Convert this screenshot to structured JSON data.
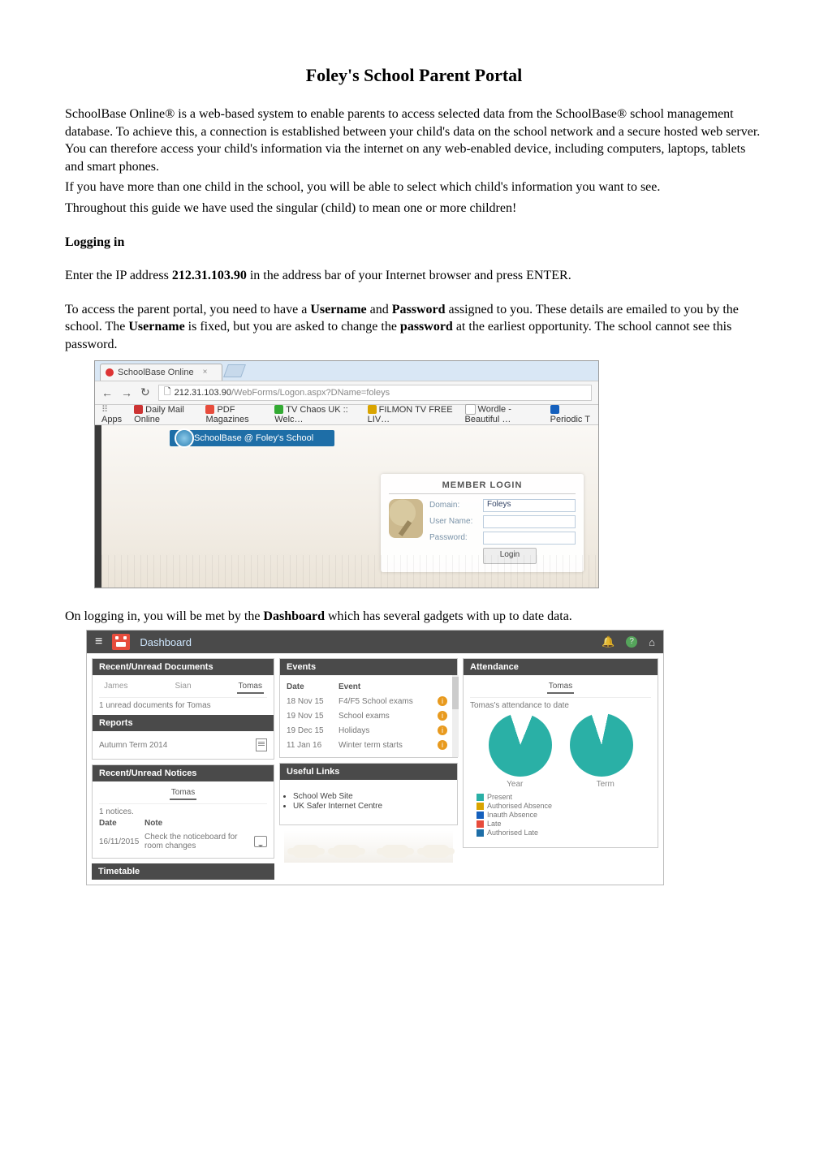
{
  "title": "Foley's School Parent Portal",
  "intro": {
    "p1": "SchoolBase Online® is a web-based system to enable parents to access selected data from the SchoolBase® school management database.  To achieve this, a connection is established between your child's data on the school network and a secure hosted web server. You can therefore access your child's information via the internet on any web-enabled device, including computers, laptops, tablets and smart phones.",
    "p2": "If you have more than one child in the school, you will be able to select which child's information you want to see.",
    "p3": "Throughout this guide we have used the singular (child) to mean one or more children!"
  },
  "sections": {
    "logging_in_heading": "Logging in",
    "ip_pre": "Enter the IP address ",
    "ip": "212.31.103.90",
    "ip_post": " in the address bar of your Internet browser and press ENTER.",
    "access_pre": "To access the parent portal, you need to have a ",
    "username_word": "Username",
    "and_word": " and ",
    "password_word": "Password",
    "access_post": " assigned to you.  These details are emailed to you by the school. The ",
    "username_word2": "Username",
    "access_post2": " is fixed, but you are asked to change the ",
    "password_word2": "password",
    "access_post3": " at the earliest opportunity. The school cannot see this password.",
    "dashboard_pre": "On logging in, you will be met by the ",
    "dashboard_word": "Dashboard",
    "dashboard_post": " which has several gadgets with up to date data."
  },
  "browser": {
    "tab_title": "SchoolBase Online",
    "url_host": "212.31.103.90",
    "url_path": "/WebForms/Logon.aspx?DName=foleys",
    "apps_label": "Apps",
    "bookmarks": [
      "Daily Mail Online",
      "PDF Magazines",
      "TV Chaos UK :: Welc…",
      "FILMON TV FREE LIV…",
      "Wordle - Beautiful …",
      "Periodic T"
    ],
    "sb_bar": "SchoolBase @ Foley's School",
    "member_login": "MEMBER LOGIN",
    "domain_label": "Domain:",
    "domain_value": "Foleys",
    "username_label": "User Name:",
    "password_label": "Password:",
    "login_btn": "Login"
  },
  "dashboard": {
    "title": "Dashboard",
    "topbar_bg": "#4a4a4a",
    "cards": {
      "recent_docs": {
        "title": "Recent/Unread Documents",
        "tabs": [
          "James",
          "Sian",
          "Tomas"
        ],
        "active_tab": 2,
        "line": "1 unread documents for Tomas"
      },
      "reports": {
        "title": "Reports",
        "row": "Autumn Term 2014"
      },
      "recent_notices": {
        "title": "Recent/Unread Notices",
        "tab": "Tomas",
        "count": "1 notices.",
        "col_date": "Date",
        "col_note": "Note",
        "row_date": "16/11/2015",
        "row_note": "Check the noticeboard for room changes"
      },
      "timetable_title": "Timetable",
      "events": {
        "title": "Events",
        "col_date": "Date",
        "col_event": "Event",
        "rows": [
          {
            "date": "18 Nov 15",
            "event": "F4/F5 School exams"
          },
          {
            "date": "19 Nov 15",
            "event": "School exams"
          },
          {
            "date": "19 Dec 15",
            "event": "Holidays"
          },
          {
            "date": "11 Jan 16",
            "event": "Winter term starts"
          }
        ]
      },
      "useful_links": {
        "title": "Useful Links",
        "items": [
          "School Web Site",
          "UK Safer Internet Centre"
        ]
      },
      "attendance": {
        "title": "Attendance",
        "tab": "Tomas",
        "line": "Tomas's attendance to date",
        "labels": [
          "Year",
          "Term"
        ],
        "pie_year": {
          "present": 320,
          "absent": 40,
          "color_present": "#2ab0a6",
          "color_absent": "#ffffff"
        },
        "pie_term": {
          "present": 330,
          "absent": 30,
          "color_present": "#2ab0a6",
          "color_absent": "#ffffff"
        },
        "legend": [
          {
            "label": "Present",
            "color": "#2ab0a6"
          },
          {
            "label": "Authorised Absence",
            "color": "#d9a400"
          },
          {
            "label": "Inauth Absence",
            "color": "#1560bd"
          },
          {
            "label": "Late",
            "color": "#e74c3c"
          },
          {
            "label": "Authorised Late",
            "color": "#1e6ea7"
          }
        ]
      }
    }
  }
}
